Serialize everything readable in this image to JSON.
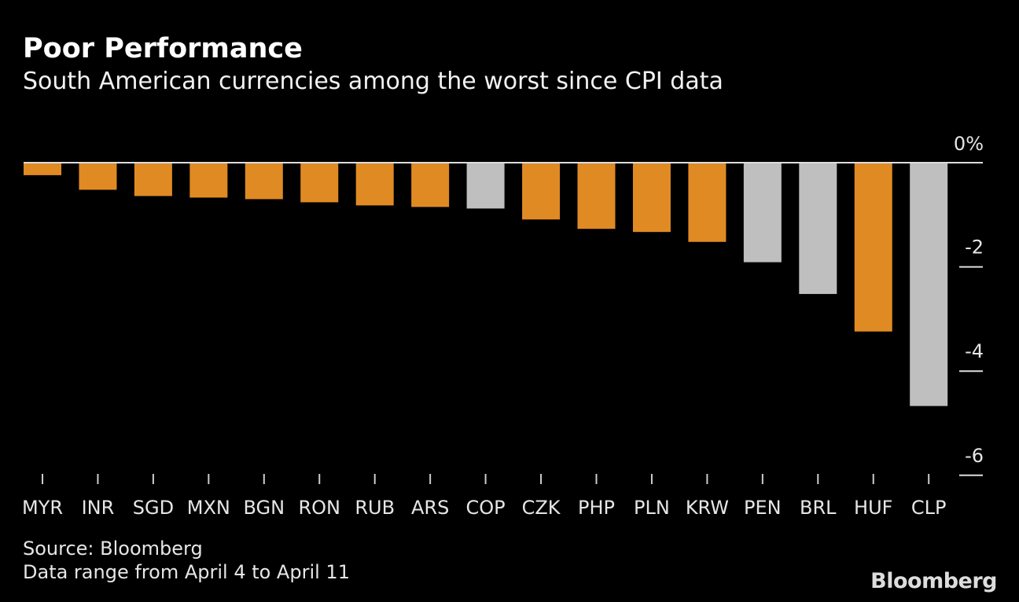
{
  "title": "Poor Performance",
  "subtitle": "South American currencies among the worst since CPI data",
  "source": "Source: Bloomberg",
  "note": "Data range from April 4 to April 11",
  "logo": "Bloomberg",
  "colors": {
    "highlight": "#E08A24",
    "south_america": "#BFBFBF",
    "background": "#000000"
  },
  "chart_data": {
    "type": "bar",
    "title": "Poor Performance",
    "subtitle": "South American currencies among the worst since CPI data",
    "xlabel": "",
    "ylabel": "",
    "y_unit": "%",
    "ylim": [
      -6,
      0
    ],
    "yticks": [
      0,
      -2,
      -4,
      -6
    ],
    "ytick_labels": [
      "0%",
      "-2",
      "-4",
      "-6"
    ],
    "grid": false,
    "categories": [
      "MYR",
      "INR",
      "SGD",
      "MXN",
      "BGN",
      "RON",
      "RUB",
      "ARS",
      "COP",
      "CZK",
      "PHP",
      "PLN",
      "KRW",
      "PEN",
      "BRL",
      "HUF",
      "CLP"
    ],
    "values": [
      -0.24,
      -0.52,
      -0.64,
      -0.67,
      -0.7,
      -0.76,
      -0.82,
      -0.85,
      -0.88,
      -1.09,
      -1.27,
      -1.33,
      -1.52,
      -1.91,
      -2.52,
      -3.24,
      -4.67
    ],
    "south_american": [
      false,
      false,
      false,
      false,
      false,
      false,
      false,
      false,
      true,
      false,
      false,
      false,
      false,
      true,
      true,
      false,
      true
    ]
  }
}
